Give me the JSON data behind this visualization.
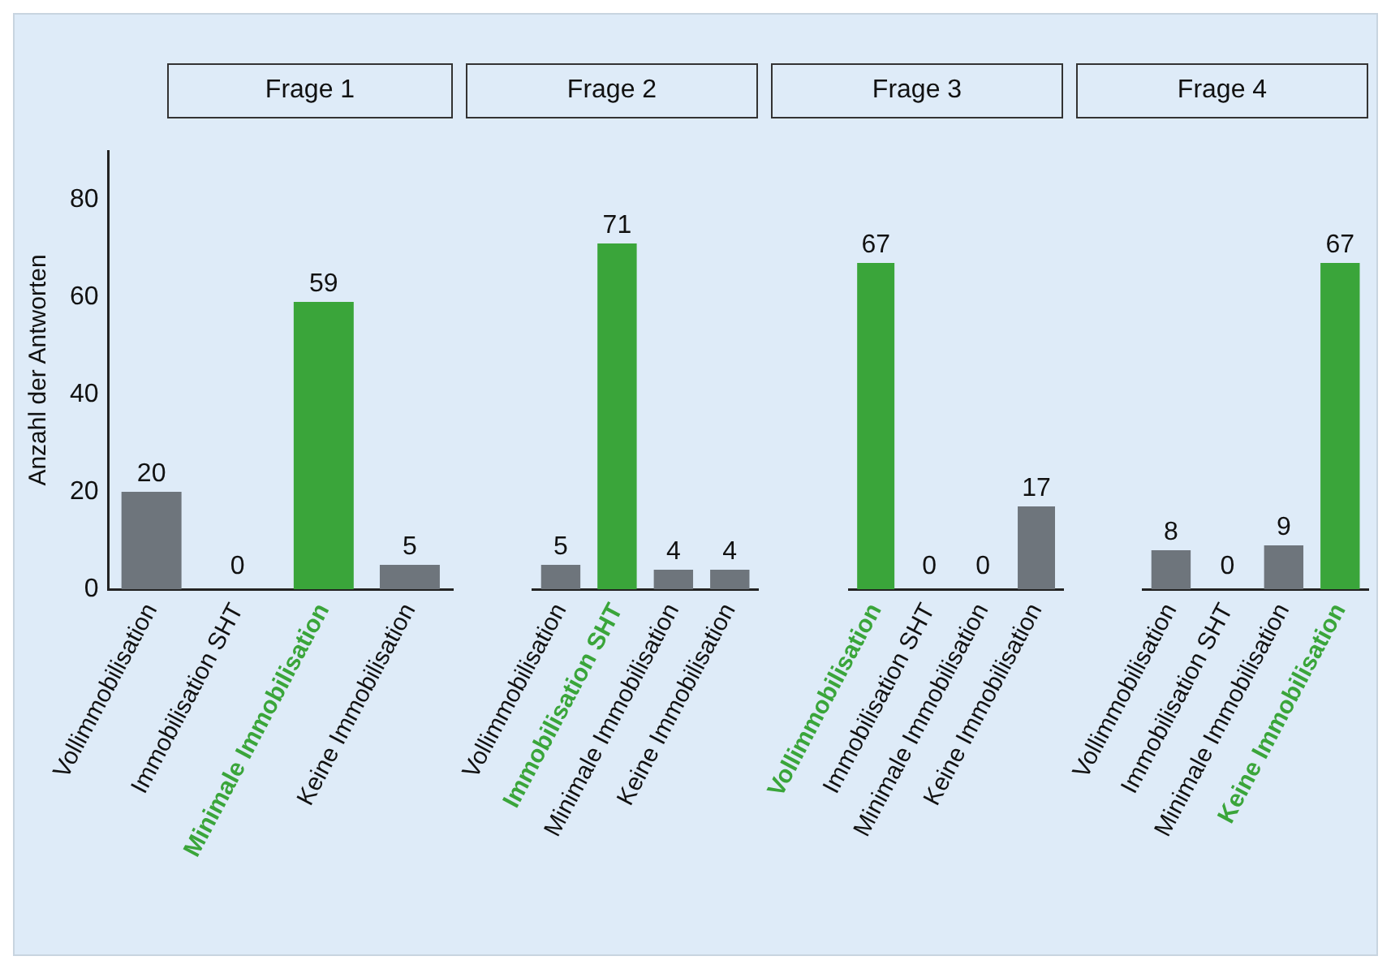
{
  "chart_data": [
    {
      "type": "bar",
      "title": "Frage 1",
      "ylabel": "Anzahl der Antworten",
      "categories": [
        "Vollimmobilisation",
        "Immobilisation SHT",
        "Minimale Immobilisation",
        "Keine Immobilisation"
      ],
      "values": [
        20,
        0,
        59,
        5
      ],
      "colors": [
        "#6e757c",
        "#6e757c",
        "#3aa53a",
        "#6e757c"
      ],
      "ylim": [
        0,
        90
      ],
      "yticks": [
        0,
        20,
        40,
        60,
        80
      ],
      "grid": false,
      "data_labels": true
    },
    {
      "type": "bar",
      "title": "Frage 2",
      "categories": [
        "Vollimmobilisation",
        "Immobilisation SHT",
        "Minimale Immobilisation",
        "Keine Immobilisation"
      ],
      "values": [
        5,
        71,
        4,
        4
      ],
      "colors": [
        "#6e757c",
        "#3aa53a",
        "#6e757c",
        "#6e757c"
      ],
      "tick_labels": "x",
      "grid": false,
      "data_labels": true
    },
    {
      "type": "bar",
      "title": "Frage 3",
      "categories": [
        "Vollimmobilisation",
        "Immobilisation SHT",
        "Minimale Immobilisation",
        "Keine Immobilisation"
      ],
      "values": [
        67,
        0,
        0,
        17
      ],
      "colors": [
        "#3aa53a",
        "#6e757c",
        "#6e757c",
        "#6e757c"
      ],
      "tick_labels": "x",
      "grid": false,
      "data_labels": true
    },
    {
      "type": "bar",
      "title": "Frage 4",
      "categories": [
        "Vollimmobilisation",
        "Immobilisation SHT",
        "Minimale Immobilisation",
        "Keine Immobilisation"
      ],
      "values": [
        8,
        0,
        9,
        67
      ],
      "colors": [
        "#6e757c",
        "#6e757c",
        "#6e757c",
        "#3aa53a"
      ],
      "tick_labels": "x",
      "grid": false,
      "data_labels": true
    }
  ]
}
